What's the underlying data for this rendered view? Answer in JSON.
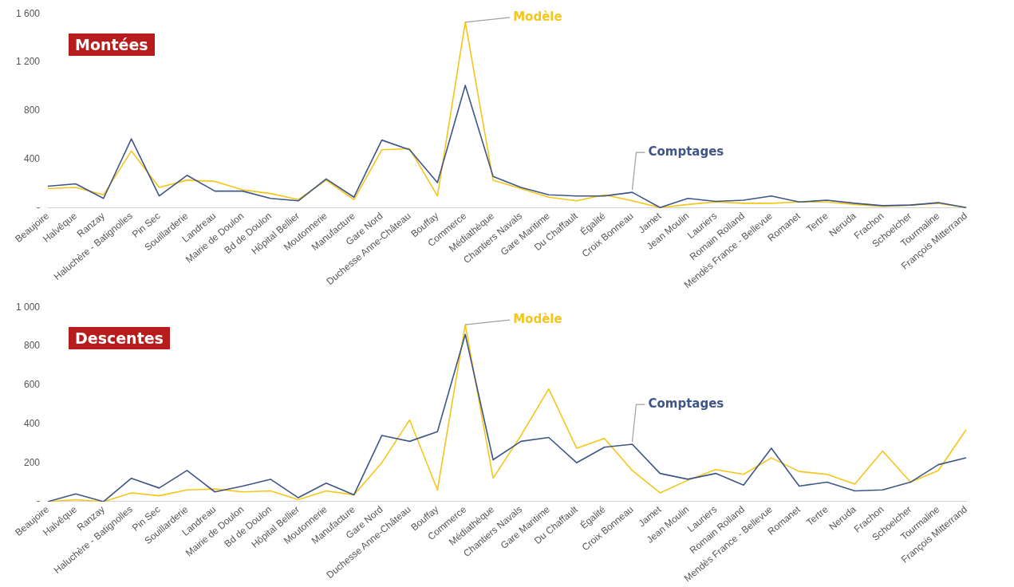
{
  "chart_data": [
    {
      "type": "line",
      "title": "Montées",
      "categories": [
        "Beaujoire",
        "Halvêque",
        "Ranzay",
        "Haluchère - Batignolles",
        "Pin Sec",
        "Souillarderie",
        "Landreau",
        "Mairie de Doulon",
        "Bd de Doulon",
        "Hôpital Bellier",
        "Moutonnerie",
        "Manufacture",
        "Gare Nord",
        "Duchesse Anne-Château",
        "Bouffay",
        "Commerce",
        "Médiathèque",
        "Chantiers Navals",
        "Gare Maritime",
        "Du Chaffault",
        "Égalité",
        "Croix Bonneau",
        "Jamet",
        "Jean Moulin",
        "Lauriers",
        "Romain Rolland",
        "Mendès France - Bellevue",
        "Romanet",
        "Tertre",
        "Neruda",
        "Frachon",
        "Schoelcher",
        "Tourmaline",
        "François Mitterrand"
      ],
      "series": [
        {
          "name": "Comptages",
          "color": "#3e5687",
          "values": [
            180,
            200,
            80,
            570,
            100,
            270,
            140,
            140,
            80,
            60,
            240,
            90,
            560,
            480,
            210,
            1010,
            260,
            170,
            110,
            100,
            100,
            130,
            5,
            80,
            55,
            65,
            100,
            50,
            65,
            40,
            20,
            25,
            45,
            5
          ]
        },
        {
          "name": "Modèle",
          "color": "#f5c518",
          "values": [
            160,
            170,
            110,
            470,
            170,
            230,
            220,
            150,
            120,
            70,
            230,
            70,
            480,
            490,
            100,
            1530,
            230,
            160,
            90,
            60,
            110,
            60,
            5,
            30,
            50,
            40,
            40,
            50,
            50,
            30,
            15,
            25,
            40,
            5
          ]
        }
      ],
      "ylim": [
        0,
        1600
      ],
      "yticks": [
        {
          "value": 0,
          "label": "-"
        },
        {
          "value": 400,
          "label": "400"
        },
        {
          "value": 800,
          "label": "800"
        },
        {
          "value": 1200,
          "label": "1 200"
        },
        {
          "value": 1600,
          "label": "1 600"
        }
      ],
      "grid": false,
      "legend": false,
      "marker": "none",
      "line_style": "solid"
    },
    {
      "type": "line",
      "title": "Descentes",
      "categories": [
        "Beaujoire",
        "Halvêque",
        "Ranzay",
        "Haluchère - Batignolles",
        "Pin Sec",
        "Souillarderie",
        "Landreau",
        "Mairie de Doulon",
        "Bd de Doulon",
        "Hôpital Bellier",
        "Moutonnerie",
        "Manufacture",
        "Gare Nord",
        "Duchesse Anne-Château",
        "Bouffay",
        "Commerce",
        "Médiathèque",
        "Chantiers Navals",
        "Gare Maritime",
        "Du Chaffault",
        "Égalité",
        "Croix Bonneau",
        "Jamet",
        "Jean Moulin",
        "Lauriers",
        "Romain Rolland",
        "Mendès France - Bellevue",
        "Romanet",
        "Tertre",
        "Neruda",
        "Frachon",
        "Schoelcher",
        "Tourmaline",
        "François Mitterrand"
      ],
      "series": [
        {
          "name": "Comptages",
          "color": "#3e5687",
          "values": [
            0,
            40,
            0,
            120,
            70,
            160,
            50,
            80,
            115,
            20,
            95,
            35,
            340,
            310,
            360,
            860,
            215,
            310,
            330,
            200,
            280,
            295,
            145,
            115,
            145,
            85,
            275,
            80,
            100,
            55,
            60,
            100,
            190,
            225
          ]
        },
        {
          "name": "Modèle",
          "color": "#f5c518",
          "values": [
            0,
            10,
            0,
            45,
            30,
            60,
            65,
            50,
            55,
            10,
            55,
            35,
            200,
            420,
            60,
            910,
            120,
            340,
            580,
            275,
            325,
            160,
            45,
            110,
            165,
            140,
            225,
            155,
            140,
            90,
            260,
            100,
            160,
            370
          ]
        }
      ],
      "ylim": [
        0,
        1000
      ],
      "yticks": [
        {
          "value": 0,
          "label": "-"
        },
        {
          "value": 200,
          "label": "200"
        },
        {
          "value": 400,
          "label": "400"
        },
        {
          "value": 600,
          "label": "600"
        },
        {
          "value": 800,
          "label": "800"
        },
        {
          "value": 1000,
          "label": "1 000"
        }
      ],
      "grid": false,
      "legend": false,
      "marker": "none",
      "line_style": "solid"
    }
  ]
}
